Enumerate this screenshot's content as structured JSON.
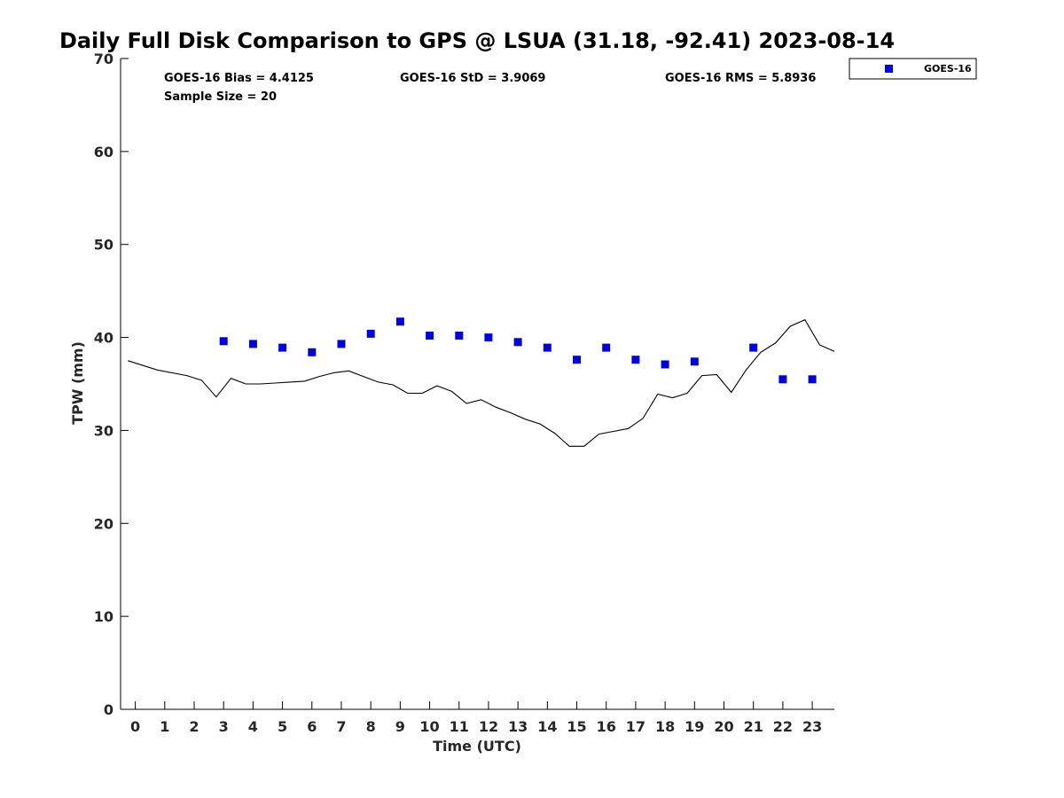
{
  "chart_data": {
    "type": "scatter",
    "title": "Daily Full Disk Comparison to GPS @ LSUA (31.18, -92.41) 2023-08-14",
    "xlabel": "Time (UTC)",
    "ylabel": "TPW (mm)",
    "xlim": [
      -0.5,
      23.75
    ],
    "ylim": [
      0,
      70
    ],
    "x_ticks": [
      "0",
      "1",
      "2",
      "3",
      "4",
      "5",
      "6",
      "7",
      "8",
      "9",
      "10",
      "11",
      "12",
      "13",
      "14",
      "15",
      "16",
      "17",
      "18",
      "19",
      "20",
      "21",
      "22",
      "23"
    ],
    "y_ticks": [
      "0",
      "10",
      "20",
      "30",
      "40",
      "50",
      "60",
      "70"
    ],
    "grid": false,
    "legend": {
      "position": "top-right",
      "entries": [
        "GOES-16"
      ]
    },
    "stats": {
      "bias": "GOES-16 Bias = 4.4125",
      "std": "GOES-16 StD = 3.9069",
      "rms": "GOES-16 RMS = 5.8936",
      "sample": "Sample Size = 20"
    },
    "series": [
      {
        "name": "GOES-16",
        "kind": "scatter",
        "color": "#0000dd",
        "x": [
          3,
          4,
          5,
          6,
          7,
          8,
          9,
          10,
          11,
          12,
          13,
          14,
          15,
          16,
          17,
          18,
          19,
          21,
          22,
          23
        ],
        "y": [
          39.6,
          39.3,
          38.9,
          38.4,
          39.3,
          40.4,
          41.7,
          40.2,
          40.2,
          40.0,
          39.5,
          38.9,
          37.6,
          38.9,
          37.6,
          37.1,
          37.4,
          38.9,
          35.5,
          35.5
        ]
      },
      {
        "kind": "line",
        "color": "#000000",
        "x": [
          -0.25,
          0.75,
          1.75,
          2.25,
          2.75,
          3.25,
          3.75,
          4.25,
          4.75,
          5.25,
          5.75,
          6.25,
          6.75,
          7.25,
          7.75,
          8.25,
          8.75,
          9.25,
          9.75,
          10.25,
          10.75,
          11.25,
          11.75,
          12.25,
          12.75,
          13.25,
          13.75,
          14.25,
          14.75,
          15.25,
          15.75,
          16.25,
          16.75,
          17.25,
          17.75,
          18.25,
          18.75,
          19.25,
          19.75,
          20.25,
          20.75,
          21.25,
          21.75,
          22.25,
          22.75,
          23.25,
          23.75
        ],
        "y": [
          37.5,
          36.5,
          35.9,
          35.4,
          33.6,
          35.6,
          35.0,
          35.0,
          35.1,
          35.2,
          35.3,
          35.8,
          36.2,
          36.4,
          35.8,
          35.2,
          34.9,
          34.0,
          34.0,
          34.8,
          34.2,
          32.9,
          33.3,
          32.5,
          31.9,
          31.2,
          30.7,
          29.7,
          28.3,
          28.3,
          29.6,
          29.9,
          30.2,
          31.3,
          33.9,
          33.5,
          34.0,
          35.9,
          36.0,
          34.1,
          36.5,
          38.4,
          39.4,
          41.2,
          41.9,
          39.2,
          38.5
        ]
      }
    ]
  }
}
